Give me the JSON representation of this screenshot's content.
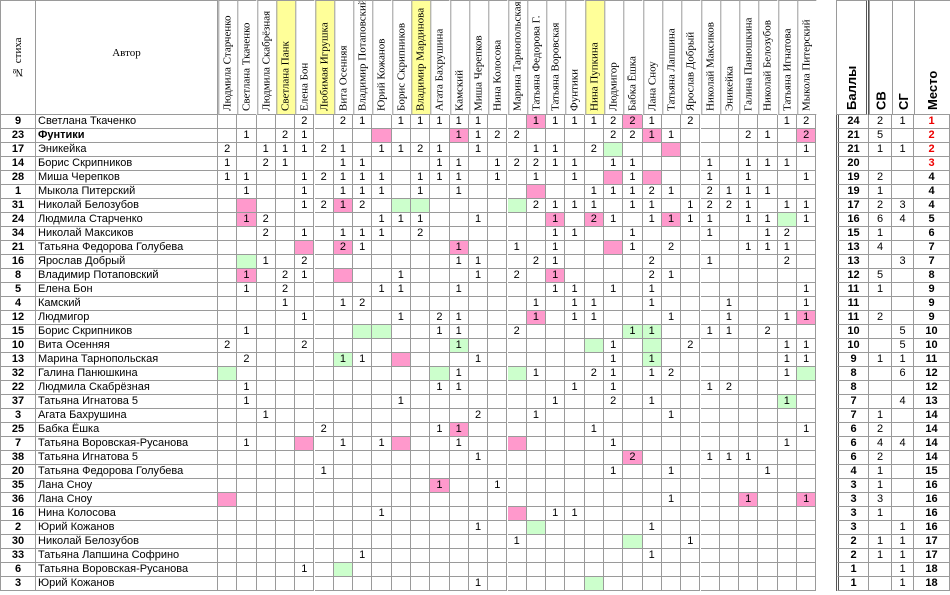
{
  "headers": {
    "num": "№ стиха",
    "author": "Автор",
    "summary": [
      "Баллы",
      "СВ",
      "СГ",
      "Место"
    ]
  },
  "columns": [
    {
      "name": "Людмила Старченко",
      "color": ""
    },
    {
      "name": "Светлана Ткаченко",
      "color": ""
    },
    {
      "name": "Людмила Скабрёзная",
      "color": ""
    },
    {
      "name": "Светлана Панк",
      "color": "#ffff99"
    },
    {
      "name": "Елена Бон",
      "color": ""
    },
    {
      "name": "Любимая Игрушка",
      "color": "#ffff99"
    },
    {
      "name": "Вита Осенняя",
      "color": ""
    },
    {
      "name": "Владимир Потаповский",
      "color": ""
    },
    {
      "name": "Юрий Кожанов",
      "color": ""
    },
    {
      "name": "Борис Скрипников",
      "color": ""
    },
    {
      "name": "Владимир Мардинова",
      "color": "#ffff99"
    },
    {
      "name": "Агата Бахрушина",
      "color": ""
    },
    {
      "name": "Камский",
      "color": ""
    },
    {
      "name": "Миша Черепков",
      "color": ""
    },
    {
      "name": "Нина Колосова",
      "color": ""
    },
    {
      "name": "Марина Тарнопольская",
      "color": ""
    },
    {
      "name": "Татьяна Федорова Г.",
      "color": ""
    },
    {
      "name": "Татьяна Воровская",
      "color": ""
    },
    {
      "name": "Фунтики",
      "color": ""
    },
    {
      "name": "Нина Пупкина",
      "color": "#ffff99"
    },
    {
      "name": "Людмигор",
      "color": ""
    },
    {
      "name": "Бабка Ёшка",
      "color": ""
    },
    {
      "name": "Лана Сноу",
      "color": ""
    },
    {
      "name": "Татьяна Лапшина",
      "color": ""
    },
    {
      "name": "Ярослав Добрый",
      "color": ""
    },
    {
      "name": "Николай Максиков",
      "color": ""
    },
    {
      "name": "Эникейка",
      "color": ""
    },
    {
      "name": "Галина Панюшкина",
      "color": ""
    },
    {
      "name": "Николай Белозубов",
      "color": ""
    },
    {
      "name": "Татьяна Игнатова",
      "color": ""
    },
    {
      "name": "Мыкола Питерский",
      "color": ""
    }
  ],
  "rows": [
    {
      "num": "9",
      "name": "Светлана Ткаченко",
      "bold": false,
      "v": {
        "4": "2",
        "6": "2",
        "7": "1",
        "9": "1",
        "10": "1",
        "11": "1",
        "12": "1",
        "13": "1",
        "16": "1",
        "17": "1",
        "18": "1",
        "19": "1",
        "20": "2",
        "21": "2",
        "22": "1",
        "24": "2",
        "29": "1",
        "30": "2"
      },
      "p": [
        16,
        21
      ],
      "g": [],
      "s": [
        "24",
        "2",
        "1",
        "1"
      ],
      "red": true
    },
    {
      "num": "23",
      "name": "Фунтики",
      "bold": true,
      "v": {
        "1": "1",
        "3": "2",
        "4": "1",
        "12": "1",
        "13": "1",
        "14": "2",
        "15": "2",
        "20": "2",
        "21": "2",
        "22": "1",
        "23": "1",
        "27": "2",
        "28": "1",
        "30": "2"
      },
      "p": [
        8,
        12,
        22,
        30
      ],
      "g": [],
      "s": [
        "21",
        "5",
        "",
        "2"
      ],
      "red": true
    },
    {
      "num": "17",
      "name": "Эникейка",
      "bold": false,
      "v": {
        "0": "2",
        "2": "1",
        "3": "1",
        "4": "1",
        "5": "2",
        "6": "1",
        "8": "1",
        "9": "1",
        "10": "2",
        "11": "1",
        "13": "1",
        "16": "1",
        "17": "1",
        "19": "2",
        "30": "1"
      },
      "p": [
        23
      ],
      "g": [
        20
      ],
      "s": [
        "21",
        "1",
        "1",
        "2"
      ],
      "red": true
    },
    {
      "num": "14",
      "name": "Борис Скрипников",
      "bold": false,
      "v": {
        "0": "1",
        "2": "2",
        "3": "1",
        "6": "1",
        "7": "1",
        "11": "1",
        "12": "1",
        "14": "1",
        "15": "2",
        "16": "2",
        "17": "1",
        "18": "1",
        "20": "1",
        "21": "1",
        "25": "1",
        "27": "1",
        "28": "1",
        "29": "1"
      },
      "p": [],
      "g": [],
      "s": [
        "20",
        "",
        "",
        "3"
      ],
      "red": true
    },
    {
      "num": "28",
      "name": "Миша Черепков",
      "bold": false,
      "v": {
        "0": "1",
        "1": "1",
        "4": "1",
        "5": "2",
        "6": "1",
        "7": "1",
        "8": "1",
        "10": "1",
        "11": "1",
        "12": "1",
        "14": "1",
        "16": "1",
        "18": "1",
        "21": "1",
        "25": "1",
        "27": "1",
        "30": "1"
      },
      "p": [
        20,
        22
      ],
      "g": [],
      "s": [
        "19",
        "2",
        "",
        "4"
      ],
      "red": false
    },
    {
      "num": "1",
      "name": "Мыкола Питерский",
      "bold": false,
      "v": {
        "1": "1",
        "4": "1",
        "6": "1",
        "7": "1",
        "8": "1",
        "10": "1",
        "12": "1",
        "19": "1",
        "20": "1",
        "21": "1",
        "22": "2",
        "23": "1",
        "25": "2",
        "26": "1",
        "27": "1",
        "28": "1"
      },
      "p": [
        16
      ],
      "g": [],
      "s": [
        "19",
        "1",
        "",
        "4"
      ],
      "red": false
    },
    {
      "num": "31",
      "name": "Николай Белозубов",
      "bold": false,
      "v": {
        "4": "1",
        "5": "2",
        "6": "1",
        "7": "2",
        "16": "2",
        "17": "1",
        "18": "1",
        "19": "1",
        "21": "1",
        "22": "1",
        "24": "1",
        "25": "2",
        "26": "2",
        "27": "1",
        "29": "1",
        "30": "1"
      },
      "p": [
        1,
        6
      ],
      "g": [
        15,
        9,
        10
      ],
      "s": [
        "17",
        "2",
        "3",
        "4"
      ],
      "red": false
    },
    {
      "num": "24",
      "name": "Людмила Старченко",
      "bold": false,
      "v": {
        "1": "1",
        "2": "2",
        "8": "1",
        "9": "1",
        "10": "1",
        "13": "1",
        "17": "1",
        "19": "2",
        "20": "1",
        "22": "1",
        "23": "1",
        "24": "1",
        "25": "1",
        "27": "1",
        "28": "1",
        "30": "1"
      },
      "p": [
        1,
        17,
        19,
        23
      ],
      "g": [
        29
      ],
      "s": [
        "16",
        "6",
        "4",
        "5"
      ],
      "red": false
    },
    {
      "num": "34",
      "name": "Николай Максиков",
      "bold": false,
      "v": {
        "2": "2",
        "4": "1",
        "6": "1",
        "7": "1",
        "8": "1",
        "10": "2",
        "17": "1",
        "18": "1",
        "21": "1",
        "25": "1",
        "28": "1",
        "29": "2"
      },
      "p": [],
      "g": [],
      "s": [
        "15",
        "1",
        "",
        "6"
      ],
      "red": false
    },
    {
      "num": "21",
      "name": "Татьяна Федорова Голубева",
      "bold": false,
      "v": {
        "6": "2",
        "7": "1",
        "12": "1",
        "15": "1",
        "17": "1",
        "21": "1",
        "23": "2",
        "27": "1",
        "28": "1",
        "29": "1"
      },
      "p": [
        4,
        6,
        12,
        20
      ],
      "g": [],
      "s": [
        "13",
        "4",
        "",
        "7"
      ],
      "red": false
    },
    {
      "num": "16",
      "name": "Ярослав Добрый",
      "bold": false,
      "v": {
        "2": "1",
        "4": "2",
        "12": "1",
        "13": "1",
        "16": "2",
        "17": "1",
        "22": "2",
        "25": "1",
        "29": "2"
      },
      "p": [],
      "g": [
        1
      ],
      "s": [
        "13",
        "",
        "3",
        "7"
      ],
      "red": false
    },
    {
      "num": "8",
      "name": "Владимир Потаповский",
      "bold": false,
      "v": {
        "1": "1",
        "3": "2",
        "4": "1",
        "9": "1",
        "13": "1",
        "15": "2",
        "17": "1",
        "22": "2",
        "23": "1"
      },
      "p": [
        1,
        6,
        17
      ],
      "g": [],
      "s": [
        "12",
        "5",
        "",
        "8"
      ],
      "red": false
    },
    {
      "num": "5",
      "name": "Елена Бон",
      "bold": false,
      "v": {
        "1": "1",
        "3": "2",
        "8": "1",
        "9": "1",
        "12": "1",
        "17": "1",
        "18": "1",
        "20": "1",
        "22": "1",
        "30": "1"
      },
      "p": [],
      "g": [],
      "s": [
        "11",
        "1",
        "",
        "9"
      ],
      "red": false
    },
    {
      "num": "4",
      "name": "Камский",
      "bold": false,
      "v": {
        "3": "1",
        "6": "1",
        "7": "2",
        "16": "1",
        "18": "1",
        "19": "1",
        "22": "1",
        "26": "1",
        "30": "1"
      },
      "p": [],
      "g": [],
      "s": [
        "11",
        "",
        "",
        "9"
      ],
      "red": false
    },
    {
      "num": "12",
      "name": "Людмигор",
      "bold": false,
      "v": {
        "4": "1",
        "9": "1",
        "11": "2",
        "12": "1",
        "16": "1",
        "18": "1",
        "19": "1",
        "23": "1",
        "26": "1",
        "29": "1",
        "30": "1"
      },
      "p": [
        16,
        30
      ],
      "g": [],
      "s": [
        "11",
        "2",
        "",
        "9"
      ],
      "red": false
    },
    {
      "num": "15",
      "name": "Борис Скрипников",
      "bold": false,
      "v": {
        "1": "1",
        "11": "1",
        "12": "1",
        "15": "2",
        "21": "1",
        "22": "1",
        "25": "1",
        "26": "1",
        "28": "2"
      },
      "p": [],
      "g": [
        7,
        8,
        21,
        22
      ],
      "s": [
        "10",
        "",
        "5",
        "10"
      ],
      "red": false
    },
    {
      "num": "10",
      "name": "Вита Осенняя",
      "bold": false,
      "v": {
        "0": "2",
        "4": "2",
        "12": "1",
        "20": "1",
        "24": "2",
        "29": "1",
        "30": "1"
      },
      "p": [],
      "g": [
        12,
        19,
        22
      ],
      "s": [
        "10",
        "",
        "5",
        "10"
      ],
      "red": false
    },
    {
      "num": "13",
      "name": "Марина Тарнопольская",
      "bold": false,
      "v": {
        "1": "2",
        "6": "1",
        "7": "1",
        "13": "1",
        "20": "1",
        "22": "1",
        "29": "1",
        "30": "1"
      },
      "p": [
        9
      ],
      "g": [
        6,
        22
      ],
      "s": [
        "9",
        "1",
        "1",
        "11"
      ],
      "red": false
    },
    {
      "num": "32",
      "name": "Галина Панюшкина",
      "bold": false,
      "v": {
        "12": "1",
        "16": "1",
        "19": "2",
        "20": "1",
        "22": "1",
        "23": "2",
        "29": "1"
      },
      "p": [],
      "g": [
        0,
        11,
        15,
        30
      ],
      "s": [
        "8",
        "",
        "6",
        "12"
      ],
      "red": false
    },
    {
      "num": "22",
      "name": "Людмила Скабрёзная",
      "bold": false,
      "v": {
        "1": "1",
        "11": "1",
        "12": "1",
        "18": "1",
        "20": "1",
        "25": "1",
        "26": "2"
      },
      "p": [],
      "g": [],
      "s": [
        "8",
        "",
        "",
        "12"
      ],
      "red": false
    },
    {
      "num": "37",
      "name": "Татьяна Игнатова 5",
      "bold": false,
      "v": {
        "1": "1",
        "9": "1",
        "17": "1",
        "20": "2",
        "22": "1",
        "29": "1"
      },
      "p": [],
      "g": [
        29
      ],
      "s": [
        "7",
        "",
        "4",
        "13"
      ],
      "red": false
    },
    {
      "num": "3",
      "name": "Агата Бахрушина",
      "bold": false,
      "v": {
        "2": "1",
        "13": "2",
        "16": "1",
        "23": "1"
      },
      "p": [],
      "g": [],
      "s": [
        "7",
        "1",
        "",
        "14"
      ],
      "red": false
    },
    {
      "num": "25",
      "name": "Бабка Ёшка",
      "bold": false,
      "v": {
        "5": "2",
        "11": "1",
        "12": "1",
        "19": "1",
        "30": "1"
      },
      "p": [
        12
      ],
      "g": [],
      "s": [
        "6",
        "2",
        "",
        "14"
      ],
      "red": false
    },
    {
      "num": "7",
      "name": "Татьяна Воровская-Русанова",
      "bold": false,
      "v": {
        "1": "1",
        "6": "1",
        "8": "1",
        "12": "1",
        "20": "1",
        "29": "1"
      },
      "p": [
        4,
        9,
        15
      ],
      "g": [],
      "s": [
        "6",
        "4",
        "4",
        "14"
      ],
      "red": false
    },
    {
      "num": "38",
      "name": "Татьяна Игнатова 5",
      "bold": false,
      "v": {
        "13": "1",
        "21": "2",
        "25": "1",
        "26": "1",
        "27": "1"
      },
      "p": [
        21
      ],
      "g": [],
      "s": [
        "6",
        "2",
        "",
        "14"
      ],
      "red": false
    },
    {
      "num": "20",
      "name": "Татьяна Федорова Голубева",
      "bold": false,
      "v": {
        "5": "1",
        "20": "1",
        "23": "1",
        "28": "1"
      },
      "p": [],
      "g": [],
      "s": [
        "4",
        "1",
        "",
        "15"
      ],
      "red": false
    },
    {
      "num": "35",
      "name": "Лана Сноу",
      "bold": false,
      "v": {
        "11": "1",
        "14": "1"
      },
      "p": [
        11
      ],
      "g": [],
      "s": [
        "3",
        "1",
        "",
        "16"
      ],
      "red": false
    },
    {
      "num": "36",
      "name": "Лана Сноу",
      "bold": false,
      "v": {
        "23": "1",
        "27": "1",
        "30": "1"
      },
      "p": [
        0,
        27,
        30
      ],
      "g": [],
      "s": [
        "3",
        "3",
        "",
        "16"
      ],
      "red": false
    },
    {
      "num": "16",
      "name": "Нина Колосова",
      "bold": false,
      "v": {
        "8": "1",
        "17": "1",
        "18": "1"
      },
      "p": [
        15
      ],
      "g": [],
      "s": [
        "3",
        "1",
        "",
        "16"
      ],
      "red": false
    },
    {
      "num": "2",
      "name": "Юрий Кожанов",
      "bold": false,
      "v": {
        "13": "1",
        "22": "1"
      },
      "p": [],
      "g": [
        16
      ],
      "s": [
        "3",
        "",
        "1",
        "16"
      ],
      "red": false
    },
    {
      "num": "30",
      "name": "Николай Белозубов",
      "bold": false,
      "v": {
        "15": "1",
        "24": "1"
      },
      "p": [],
      "g": [
        21
      ],
      "s": [
        "2",
        "1",
        "1",
        "17"
      ],
      "red": false
    },
    {
      "num": "33",
      "name": "Татьяна Лапшина Софрино",
      "bold": false,
      "v": {
        "7": "1",
        "22": "1"
      },
      "p": [],
      "g": [],
      "s": [
        "2",
        "1",
        "1",
        "17"
      ],
      "red": false
    },
    {
      "num": "6",
      "name": "Татьяна Воровская-Русанова",
      "bold": false,
      "v": {
        "4": "1"
      },
      "p": [],
      "g": [
        6
      ],
      "s": [
        "1",
        "",
        "1",
        "18"
      ],
      "red": false
    },
    {
      "num": "3",
      "name": "Юрий Кожанов",
      "bold": false,
      "v": {
        "13": "1"
      },
      "p": [],
      "g": [
        19
      ],
      "s": [
        "1",
        "",
        "1",
        "18"
      ],
      "red": false
    }
  ],
  "colors": {
    "pink": "#ff99cc",
    "green": "#ccffcc",
    "red": "#ee0000",
    "highlight": "#ffff99"
  }
}
